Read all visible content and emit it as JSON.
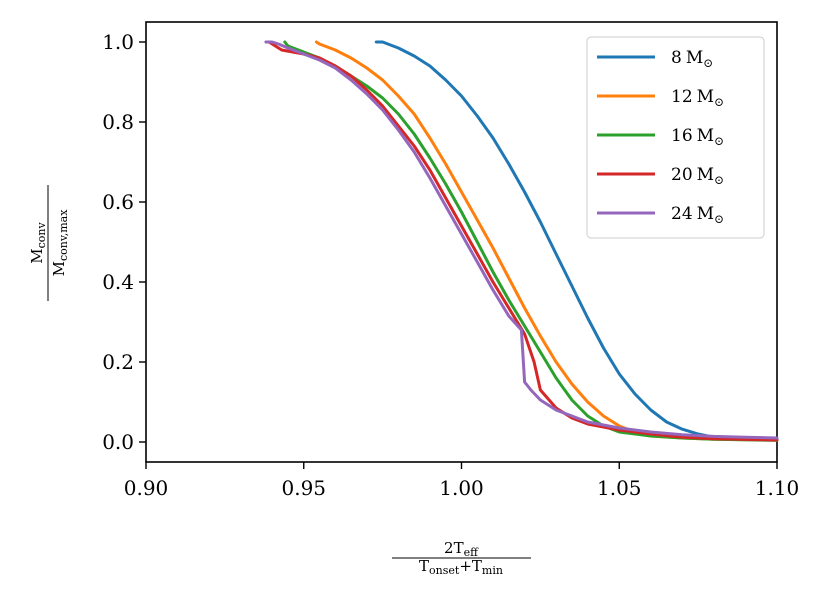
{
  "chart_data": {
    "type": "line",
    "xlim": [
      0.9,
      1.1
    ],
    "ylim": [
      -0.05,
      1.05
    ],
    "xticks": [
      {
        "value": 0.9,
        "label": "0.90"
      },
      {
        "value": 0.95,
        "label": "0.95"
      },
      {
        "value": 1.0,
        "label": "1.00"
      },
      {
        "value": 1.05,
        "label": "1.05"
      },
      {
        "value": 1.1,
        "label": "1.10"
      }
    ],
    "yticks": [
      {
        "value": 0.0,
        "label": "0.0"
      },
      {
        "value": 0.2,
        "label": "0.2"
      },
      {
        "value": 0.4,
        "label": "0.4"
      },
      {
        "value": 0.6,
        "label": "0.6"
      },
      {
        "value": 0.8,
        "label": "0.8"
      },
      {
        "value": 1.0,
        "label": "1.0"
      }
    ],
    "xlabel": {
      "numerator": "2T",
      "numerator_sub": "eff",
      "denominator_a": "T",
      "denominator_a_sub": "onset",
      "denominator_op": "+",
      "denominator_b": "T",
      "denominator_b_sub": "min"
    },
    "ylabel": {
      "numerator": "M",
      "numerator_sub": "conv",
      "denominator": "M",
      "denominator_sub": "conv,max"
    },
    "grid": false,
    "legend_position": "top-right",
    "series": [
      {
        "name": "8 M⊙",
        "mass": "8",
        "unit": "M",
        "unit_sub": "⊙",
        "color": "#1f77b4",
        "points": [
          [
            0.973,
            1.0
          ],
          [
            0.975,
            1.0
          ],
          [
            0.98,
            0.985
          ],
          [
            0.985,
            0.965
          ],
          [
            0.99,
            0.94
          ],
          [
            0.995,
            0.905
          ],
          [
            1.0,
            0.865
          ],
          [
            1.005,
            0.815
          ],
          [
            1.01,
            0.76
          ],
          [
            1.015,
            0.695
          ],
          [
            1.02,
            0.625
          ],
          [
            1.025,
            0.55
          ],
          [
            1.03,
            0.47
          ],
          [
            1.035,
            0.39
          ],
          [
            1.04,
            0.31
          ],
          [
            1.045,
            0.235
          ],
          [
            1.05,
            0.17
          ],
          [
            1.055,
            0.12
          ],
          [
            1.06,
            0.08
          ],
          [
            1.065,
            0.05
          ],
          [
            1.07,
            0.032
          ],
          [
            1.075,
            0.02
          ],
          [
            1.08,
            0.012
          ],
          [
            1.09,
            0.01
          ],
          [
            1.1,
            0.008
          ]
        ]
      },
      {
        "name": "12 M⊙",
        "mass": "12",
        "unit": "M",
        "unit_sub": "⊙",
        "color": "#ff7f0e",
        "points": [
          [
            0.954,
            1.0
          ],
          [
            0.955,
            0.995
          ],
          [
            0.96,
            0.98
          ],
          [
            0.965,
            0.96
          ],
          [
            0.97,
            0.935
          ],
          [
            0.975,
            0.905
          ],
          [
            0.98,
            0.865
          ],
          [
            0.985,
            0.82
          ],
          [
            0.99,
            0.76
          ],
          [
            0.995,
            0.695
          ],
          [
            1.0,
            0.625
          ],
          [
            1.005,
            0.555
          ],
          [
            1.01,
            0.485
          ],
          [
            1.015,
            0.41
          ],
          [
            1.02,
            0.335
          ],
          [
            1.025,
            0.265
          ],
          [
            1.03,
            0.2
          ],
          [
            1.035,
            0.145
          ],
          [
            1.04,
            0.1
          ],
          [
            1.045,
            0.065
          ],
          [
            1.05,
            0.04
          ],
          [
            1.055,
            0.025
          ],
          [
            1.06,
            0.015
          ],
          [
            1.07,
            0.01
          ],
          [
            1.08,
            0.007
          ],
          [
            1.1,
            0.005
          ]
        ]
      },
      {
        "name": "16 M⊙",
        "mass": "16",
        "unit": "M",
        "unit_sub": "⊙",
        "color": "#2ca02c",
        "points": [
          [
            0.944,
            1.0
          ],
          [
            0.945,
            0.99
          ],
          [
            0.95,
            0.975
          ],
          [
            0.955,
            0.96
          ],
          [
            0.96,
            0.94
          ],
          [
            0.965,
            0.915
          ],
          [
            0.97,
            0.89
          ],
          [
            0.975,
            0.86
          ],
          [
            0.98,
            0.82
          ],
          [
            0.985,
            0.77
          ],
          [
            0.99,
            0.71
          ],
          [
            0.995,
            0.645
          ],
          [
            1.0,
            0.575
          ],
          [
            1.005,
            0.5
          ],
          [
            1.01,
            0.425
          ],
          [
            1.015,
            0.355
          ],
          [
            1.02,
            0.29
          ],
          [
            1.025,
            0.225
          ],
          [
            1.03,
            0.16
          ],
          [
            1.035,
            0.105
          ],
          [
            1.04,
            0.065
          ],
          [
            1.045,
            0.04
          ],
          [
            1.05,
            0.025
          ],
          [
            1.06,
            0.015
          ],
          [
            1.07,
            0.01
          ],
          [
            1.08,
            0.007
          ],
          [
            1.1,
            0.004
          ]
        ]
      },
      {
        "name": "20 M⊙",
        "mass": "20",
        "unit": "M",
        "unit_sub": "⊙",
        "color": "#d62728",
        "points": [
          [
            0.939,
            1.0
          ],
          [
            0.941,
            0.99
          ],
          [
            0.943,
            0.98
          ],
          [
            0.95,
            0.97
          ],
          [
            0.955,
            0.96
          ],
          [
            0.96,
            0.94
          ],
          [
            0.965,
            0.915
          ],
          [
            0.97,
            0.88
          ],
          [
            0.975,
            0.84
          ],
          [
            0.98,
            0.79
          ],
          [
            0.985,
            0.74
          ],
          [
            0.99,
            0.68
          ],
          [
            0.995,
            0.61
          ],
          [
            1.0,
            0.54
          ],
          [
            1.005,
            0.47
          ],
          [
            1.01,
            0.4
          ],
          [
            1.015,
            0.335
          ],
          [
            1.02,
            0.27
          ],
          [
            1.023,
            0.2
          ],
          [
            1.025,
            0.13
          ],
          [
            1.03,
            0.085
          ],
          [
            1.035,
            0.06
          ],
          [
            1.04,
            0.045
          ],
          [
            1.05,
            0.03
          ],
          [
            1.06,
            0.02
          ],
          [
            1.07,
            0.012
          ],
          [
            1.08,
            0.008
          ],
          [
            1.1,
            0.005
          ]
        ]
      },
      {
        "name": "24 M⊙",
        "mass": "24",
        "unit": "M",
        "unit_sub": "⊙",
        "color": "#9467bd",
        "points": [
          [
            0.938,
            1.0
          ],
          [
            0.94,
            1.0
          ],
          [
            0.942,
            0.995
          ],
          [
            0.945,
            0.985
          ],
          [
            0.95,
            0.97
          ],
          [
            0.955,
            0.955
          ],
          [
            0.96,
            0.935
          ],
          [
            0.965,
            0.905
          ],
          [
            0.97,
            0.87
          ],
          [
            0.975,
            0.83
          ],
          [
            0.98,
            0.78
          ],
          [
            0.985,
            0.725
          ],
          [
            0.99,
            0.66
          ],
          [
            0.995,
            0.59
          ],
          [
            1.0,
            0.52
          ],
          [
            1.005,
            0.45
          ],
          [
            1.01,
            0.38
          ],
          [
            1.015,
            0.315
          ],
          [
            1.019,
            0.28
          ],
          [
            1.02,
            0.15
          ],
          [
            1.022,
            0.13
          ],
          [
            1.025,
            0.105
          ],
          [
            1.03,
            0.08
          ],
          [
            1.035,
            0.065
          ],
          [
            1.04,
            0.05
          ],
          [
            1.05,
            0.035
          ],
          [
            1.06,
            0.025
          ],
          [
            1.07,
            0.018
          ],
          [
            1.08,
            0.014
          ],
          [
            1.09,
            0.012
          ],
          [
            1.1,
            0.01
          ]
        ]
      }
    ]
  }
}
